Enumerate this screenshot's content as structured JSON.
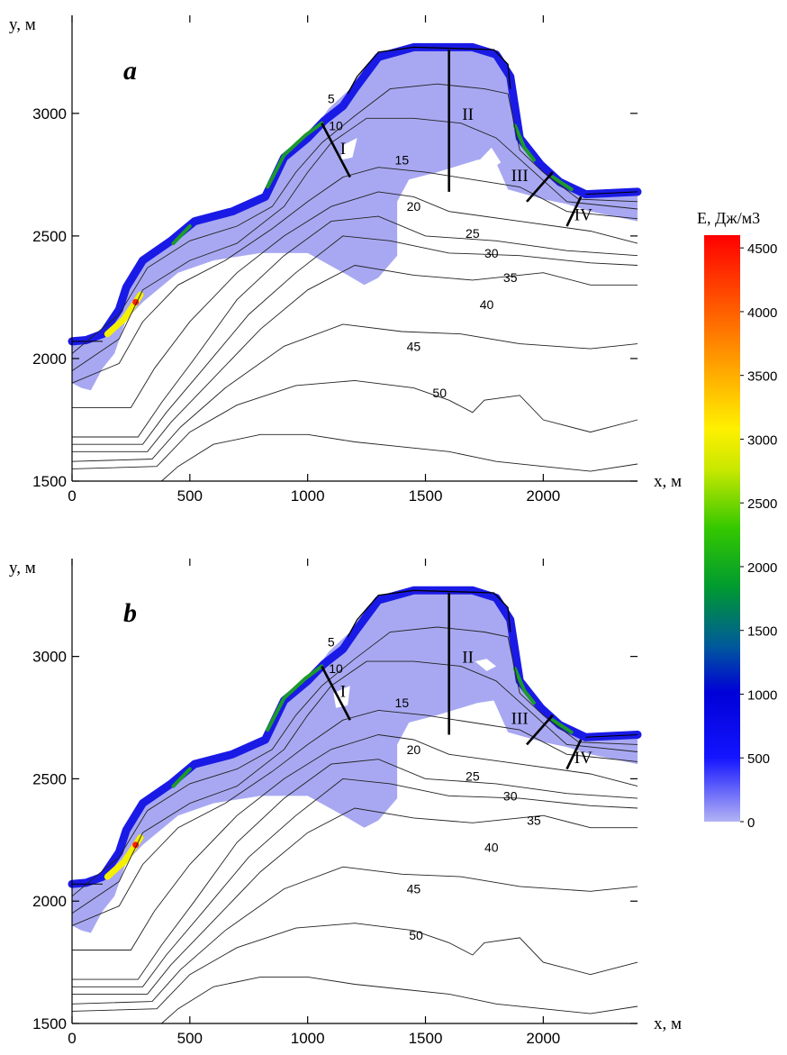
{
  "chart_data": [
    {
      "type": "heatmap",
      "panel_label": "a",
      "x_axis_label": "x, м",
      "y_axis_label": "y, м",
      "xlim": [
        0,
        2400
      ],
      "ylim": [
        1500,
        3400
      ],
      "x_ticks": [
        "0",
        "500",
        "1000",
        "1500",
        "2000"
      ],
      "y_ticks": [
        "1500",
        "2000",
        "2500",
        "3000"
      ],
      "contour_labels": [
        "5",
        "10",
        "15",
        "20",
        "25",
        "30",
        "35",
        "40",
        "45",
        "50"
      ],
      "profiles": [
        {
          "label": "I",
          "x1": 1060,
          "y1": 2960,
          "x2": 1180,
          "y2": 2740
        },
        {
          "label": "II",
          "x1": 1600,
          "y1": 3260,
          "x2": 1600,
          "y2": 2680
        },
        {
          "label": "III",
          "x1": 2040,
          "y1": 2760,
          "x2": 1930,
          "y2": 2640
        },
        {
          "label": "IV",
          "x1": 2160,
          "y1": 2660,
          "x2": 2100,
          "y2": 2540
        }
      ],
      "max_energy_location": {
        "x": 270,
        "y": 2230
      }
    },
    {
      "type": "heatmap",
      "panel_label": "b",
      "x_axis_label": "x, м",
      "y_axis_label": "y, м",
      "xlim": [
        0,
        2400
      ],
      "ylim": [
        1500,
        3400
      ],
      "x_ticks": [
        "0",
        "500",
        "1000",
        "1500",
        "2000"
      ],
      "y_ticks": [
        "1500",
        "2000",
        "2500",
        "3000"
      ],
      "contour_labels": [
        "5",
        "10",
        "15",
        "20",
        "25",
        "30",
        "35",
        "40",
        "45",
        "50"
      ],
      "profiles": [
        {
          "label": "I",
          "x1": 1060,
          "y1": 2960,
          "x2": 1180,
          "y2": 2740
        },
        {
          "label": "II",
          "x1": 1600,
          "y1": 3260,
          "x2": 1600,
          "y2": 2680
        },
        {
          "label": "III",
          "x1": 2040,
          "y1": 2760,
          "x2": 1930,
          "y2": 2640
        },
        {
          "label": "IV",
          "x1": 2160,
          "y1": 2660,
          "x2": 2100,
          "y2": 2540
        }
      ],
      "max_energy_location": {
        "x": 270,
        "y": 2230
      }
    }
  ],
  "colorbar": {
    "title": "E, Дж/м3",
    "min": 0,
    "max": 4600,
    "ticks": [
      "0",
      "500",
      "1000",
      "1500",
      "2000",
      "2500",
      "3000",
      "3500",
      "4000",
      "4500"
    ],
    "tick_values": [
      0,
      500,
      1000,
      1500,
      2000,
      2500,
      3000,
      3500,
      4000,
      4500
    ],
    "colors": [
      "#b3b3f5",
      "#2a2ae8",
      "#0000ff",
      "#006a8a",
      "#0a9a1a",
      "#7cd000",
      "#f5f000",
      "#ff9a00",
      "#ff4000",
      "#ff0000"
    ]
  }
}
